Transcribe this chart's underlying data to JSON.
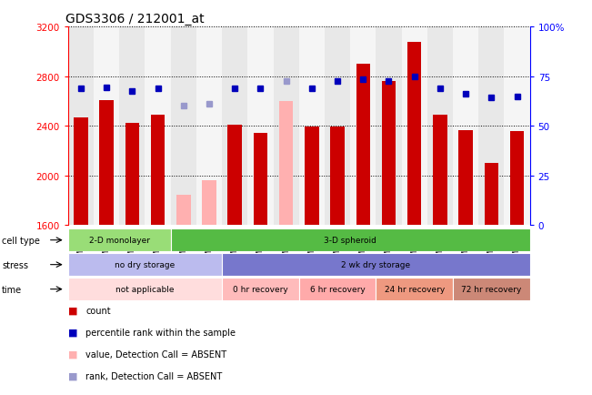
{
  "title": "GDS3306 / 212001_at",
  "samples": [
    "GSM24493",
    "GSM24494",
    "GSM24495",
    "GSM24496",
    "GSM24497",
    "GSM24498",
    "GSM24499",
    "GSM24500",
    "GSM24501",
    "GSM24502",
    "GSM24503",
    "GSM24504",
    "GSM24505",
    "GSM24506",
    "GSM24507",
    "GSM24508",
    "GSM24509",
    "GSM24510"
  ],
  "count_values": [
    2470,
    2610,
    2420,
    2490,
    null,
    null,
    2410,
    2340,
    null,
    2395,
    2395,
    2900,
    2760,
    3080,
    2490,
    2365,
    2100,
    2360
  ],
  "count_absent": [
    null,
    null,
    null,
    null,
    1840,
    1960,
    null,
    null,
    2600,
    null,
    null,
    null,
    null,
    null,
    null,
    null,
    null,
    null
  ],
  "rank_values": [
    68.75,
    69.5,
    67.5,
    68.75,
    null,
    null,
    68.75,
    68.75,
    null,
    68.75,
    72.5,
    73.75,
    72.5,
    75.0,
    68.75,
    66.25,
    64.5,
    65.0
  ],
  "rank_absent": [
    null,
    null,
    null,
    null,
    60.0,
    61.25,
    null,
    null,
    72.5,
    null,
    null,
    null,
    null,
    null,
    null,
    null,
    null,
    null
  ],
  "ylim_left": [
    1600,
    3200
  ],
  "ylim_right": [
    0,
    100
  ],
  "yticks_left": [
    1600,
    2000,
    2400,
    2800,
    3200
  ],
  "yticks_right": [
    0,
    25,
    50,
    75,
    100
  ],
  "bar_color": "#cc0000",
  "bar_absent_color": "#ffb0b0",
  "rank_color": "#0000bb",
  "rank_absent_color": "#9999cc",
  "cell_type_spans": [
    [
      0,
      4,
      "2-D monolayer"
    ],
    [
      4,
      18,
      "3-D spheroid"
    ]
  ],
  "cell_type_colors": {
    "2-D monolayer": "#99dd77",
    "3-D spheroid": "#55bb44"
  },
  "stress_spans": [
    [
      0,
      6,
      "no dry storage"
    ],
    [
      6,
      18,
      "2 wk dry storage"
    ]
  ],
  "stress_colors": {
    "no dry storage": "#bbbbee",
    "2 wk dry storage": "#7777cc"
  },
  "time_spans": [
    [
      0,
      6,
      "not applicable"
    ],
    [
      6,
      9,
      "0 hr recovery"
    ],
    [
      9,
      12,
      "6 hr recovery"
    ],
    [
      12,
      15,
      "24 hr recovery"
    ],
    [
      15,
      18,
      "72 hr recovery"
    ]
  ],
  "time_colors": {
    "not applicable": "#ffdddd",
    "0 hr recovery": "#ffbbbb",
    "6 hr recovery": "#ffaaaa",
    "24 hr recovery": "#ee9980",
    "72 hr recovery": "#cc8877"
  }
}
